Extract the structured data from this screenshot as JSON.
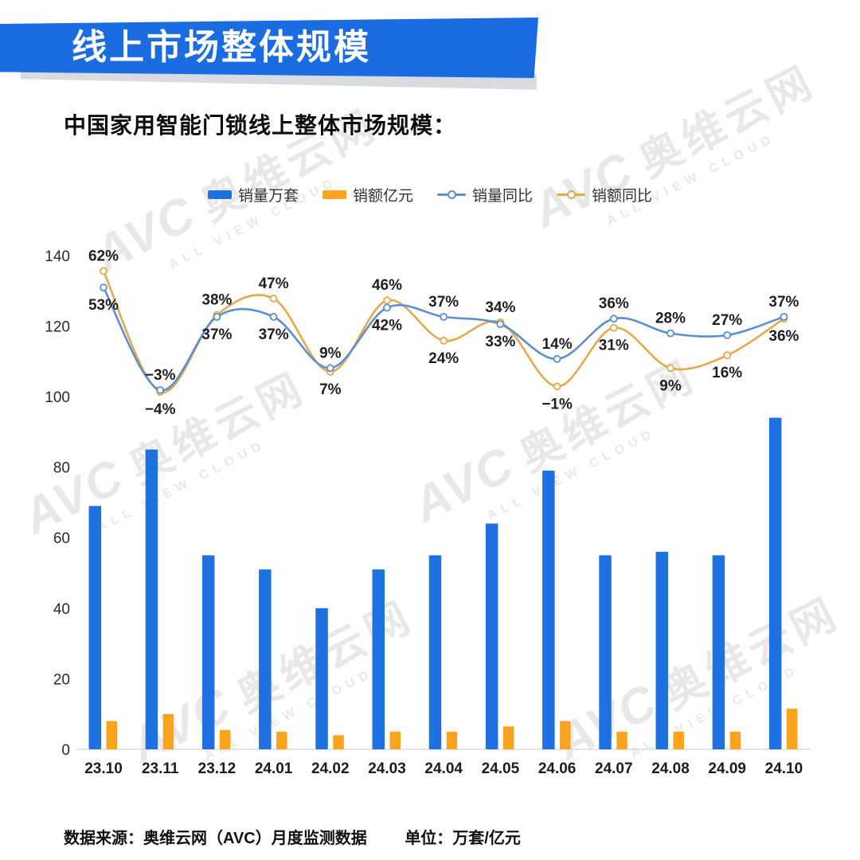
{
  "header": {
    "title": "线上市场整体规模"
  },
  "subtitle": "中国家用智能门锁线上整体市场规模：",
  "legend": [
    {
      "label": "销量万套",
      "type": "bar",
      "color": "#1f70e1"
    },
    {
      "label": "销额亿元",
      "type": "bar",
      "color": "#faa41d"
    },
    {
      "label": "销量同比",
      "type": "line",
      "color": "#5b8fd0"
    },
    {
      "label": "销额同比",
      "type": "line",
      "color": "#e2aa4d"
    }
  ],
  "watermark": {
    "logo": "AVC",
    "name": "奥维云网",
    "slogan": "ALL VIEW CLOUD"
  },
  "footer": {
    "source": "数据来源：奥维云网（AVC）月度监测数据",
    "unit": "单位：万套/亿元"
  },
  "chart_data": {
    "type": "bar+line",
    "categories": [
      "23.10",
      "23.11",
      "23.12",
      "24.01",
      "24.02",
      "24.03",
      "24.04",
      "24.05",
      "24.06",
      "24.07",
      "24.08",
      "24.09",
      "24.10"
    ],
    "series": [
      {
        "name": "销量万套",
        "type": "bar",
        "color": "#1f70e1",
        "values": [
          69,
          85,
          55,
          51,
          40,
          51,
          55,
          64,
          79,
          55,
          56,
          55,
          94
        ]
      },
      {
        "name": "销额亿元",
        "type": "bar",
        "color": "#faa41d",
        "values": [
          8,
          10,
          5.5,
          5,
          4,
          5,
          5,
          6.5,
          8,
          5,
          5,
          5,
          11.5
        ]
      },
      {
        "name": "销量同比",
        "type": "line",
        "color": "#5b8fd0",
        "unit": "%",
        "values": [
          53,
          -3,
          37,
          37,
          9,
          42,
          37,
          33,
          14,
          36,
          28,
          27,
          37
        ]
      },
      {
        "name": "销额同比",
        "type": "line",
        "color": "#e2aa4d",
        "unit": "%",
        "values": [
          62,
          -4,
          38,
          47,
          7,
          46,
          24,
          34,
          -1,
          31,
          9,
          16,
          36
        ]
      }
    ],
    "value_axis": {
      "min": 0,
      "max": 140,
      "step": 20,
      "ticks": [
        0,
        20,
        40,
        60,
        80,
        100,
        120,
        140
      ]
    },
    "grid": false,
    "legend_position": "top"
  }
}
